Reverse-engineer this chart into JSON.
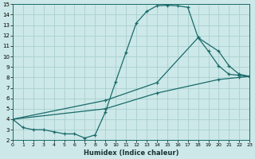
{
  "xlabel": "Humidex (Indice chaleur)",
  "bg_color": "#cce8e8",
  "grid_color": "#aacfcf",
  "line_color": "#1a6a6a",
  "xlim": [
    0,
    23
  ],
  "ylim": [
    2,
    15
  ],
  "xticks": [
    0,
    1,
    2,
    3,
    4,
    5,
    6,
    7,
    8,
    9,
    10,
    11,
    12,
    13,
    14,
    15,
    16,
    17,
    18,
    19,
    20,
    21,
    22,
    23
  ],
  "yticks": [
    2,
    3,
    4,
    5,
    6,
    7,
    8,
    9,
    10,
    11,
    12,
    13,
    14,
    15
  ],
  "line1_x": [
    0,
    1,
    2,
    3,
    4,
    5,
    6,
    7,
    8,
    9,
    10,
    11,
    12,
    13,
    14,
    15,
    16,
    17,
    18,
    19,
    20,
    21,
    22,
    23
  ],
  "line1_y": [
    4.0,
    3.2,
    3.0,
    3.0,
    2.8,
    2.6,
    2.6,
    2.2,
    2.5,
    4.7,
    7.6,
    10.4,
    13.2,
    14.3,
    14.85,
    14.9,
    14.85,
    14.7,
    11.8,
    10.5,
    9.1,
    8.3,
    8.2,
    8.1
  ],
  "line2_x": [
    0,
    9,
    14,
    18,
    20,
    21,
    22,
    23
  ],
  "line2_y": [
    4.0,
    5.8,
    7.5,
    11.8,
    10.5,
    9.1,
    8.3,
    8.1
  ],
  "line3_x": [
    0,
    9,
    14,
    20,
    22,
    23
  ],
  "line3_y": [
    4.0,
    5.0,
    6.5,
    7.8,
    8.0,
    8.1
  ]
}
